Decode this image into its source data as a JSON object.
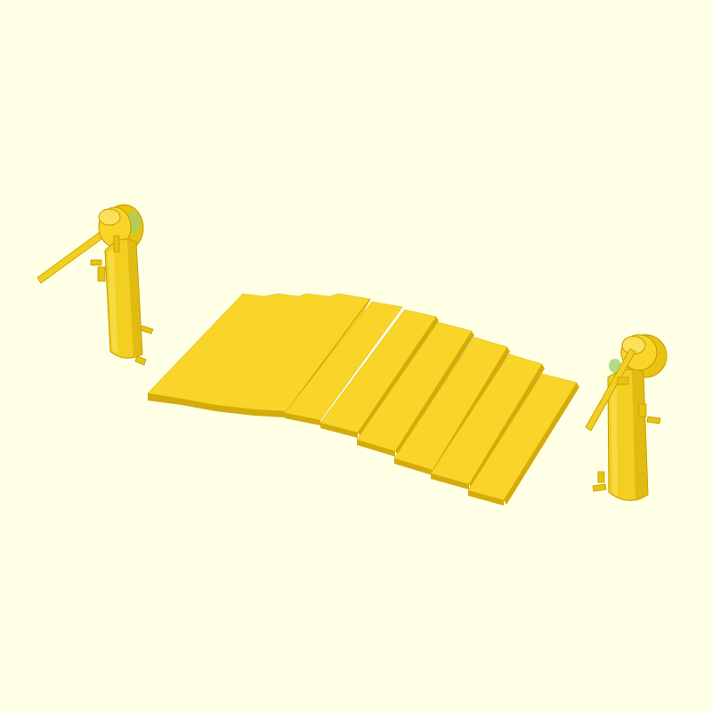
{
  "scene": {
    "background": "#ffffe5",
    "part_color": "#f8d528",
    "part_top": "#fbe15a",
    "part_side": "#d4ab08",
    "part_shadow": "#b99400",
    "highlight_color": "#9ed36a",
    "objects": [
      "left-post",
      "right-post",
      "plank-set"
    ],
    "plank_count": 12
  }
}
